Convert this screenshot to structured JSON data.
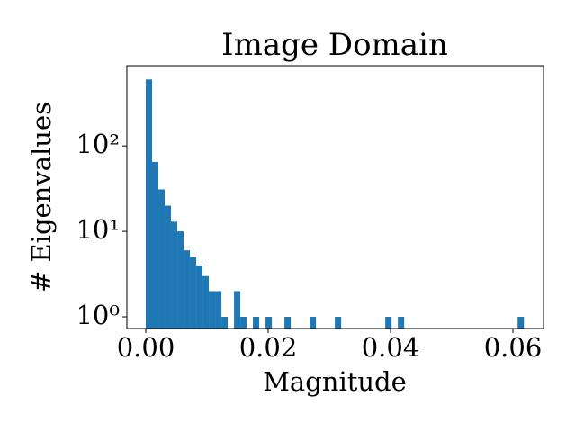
{
  "chart_data": {
    "type": "histogram",
    "title": "Image Domain",
    "x_label": "Magnitude",
    "y_label": "# Eigenvalues",
    "bins": [
      0,
      0.00103,
      0.00206,
      0.00309,
      0.00412,
      0.00515,
      0.00618,
      0.00721,
      0.00824,
      0.00927,
      0.0103,
      0.01133,
      0.01236,
      0.01339,
      0.01442,
      0.01545,
      0.01648,
      0.01751,
      0.01854,
      0.01957,
      0.0206,
      0.02163,
      0.02266,
      0.02369,
      0.02472,
      0.02575,
      0.02678,
      0.02781,
      0.02884,
      0.02987,
      0.0309,
      0.03193,
      0.03296,
      0.03399,
      0.03502,
      0.03605,
      0.03708,
      0.03811,
      0.03914,
      0.04017,
      0.0412,
      0.04223,
      0.04326,
      0.04429,
      0.04532,
      0.04635,
      0.04738,
      0.04841,
      0.04944,
      0.05047,
      0.0515,
      0.05253,
      0.05356,
      0.05459,
      0.05562,
      0.05665,
      0.05768,
      0.05871,
      0.05974,
      0.06077,
      0.0618
    ],
    "values": [
      600,
      65,
      31,
      20,
      13,
      10,
      6,
      5,
      4,
      3,
      2,
      2,
      1,
      0,
      2,
      1,
      0,
      1,
      0,
      1,
      0,
      0,
      1,
      0,
      0,
      0,
      1,
      0,
      0,
      0,
      1,
      0,
      0,
      0,
      0,
      0,
      0,
      0,
      1,
      0,
      1,
      0,
      0,
      0,
      0,
      0,
      0,
      0,
      0,
      0,
      0,
      0,
      0,
      0,
      0,
      0,
      0,
      0,
      0,
      1
    ],
    "color": "#1f77b4",
    "xlim": [
      -0.00309,
      0.065
    ],
    "xticks": [
      {
        "value": 0,
        "label": "0.00"
      },
      0.02,
      0.04,
      0.06
    ],
    "ylim": [
      0.73,
      870
    ],
    "y_scale": "log",
    "yticks": [
      {
        "value": 1,
        "label": "10⁰"
      },
      {
        "value": 10,
        "label": "10¹"
      },
      {
        "value": 100,
        "label": "10²"
      }
    ]
  }
}
